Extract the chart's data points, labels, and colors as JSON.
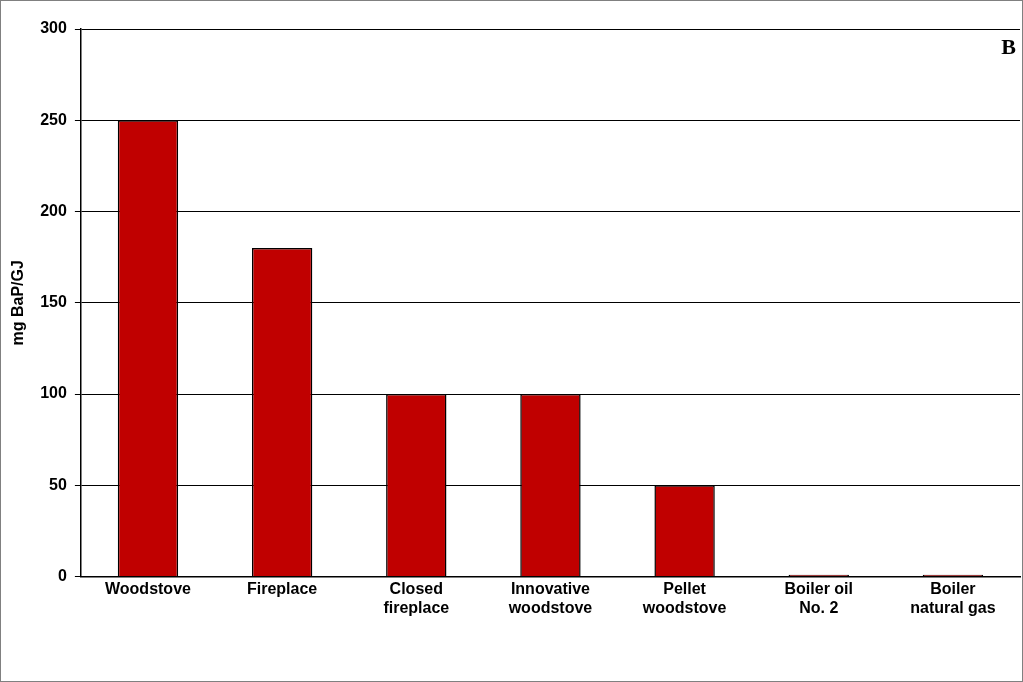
{
  "chart_data": {
    "type": "bar",
    "ylabel": "mg BaP/GJ",
    "annotations": [
      "B"
    ],
    "categories": [
      "Woodstove",
      "Fireplace",
      "Closed fireplace",
      "Innovative woodstove",
      "Pellet woodstove",
      "Boiler oil No. 2",
      "Boiler natural gas"
    ],
    "values": [
      250,
      180,
      100,
      100,
      50,
      1,
      1
    ],
    "color": "#c00000",
    "ylim": [
      0,
      300
    ],
    "yticks": [
      0,
      50,
      100,
      150,
      200,
      250,
      300
    ],
    "grid": "y",
    "legend": false
  }
}
